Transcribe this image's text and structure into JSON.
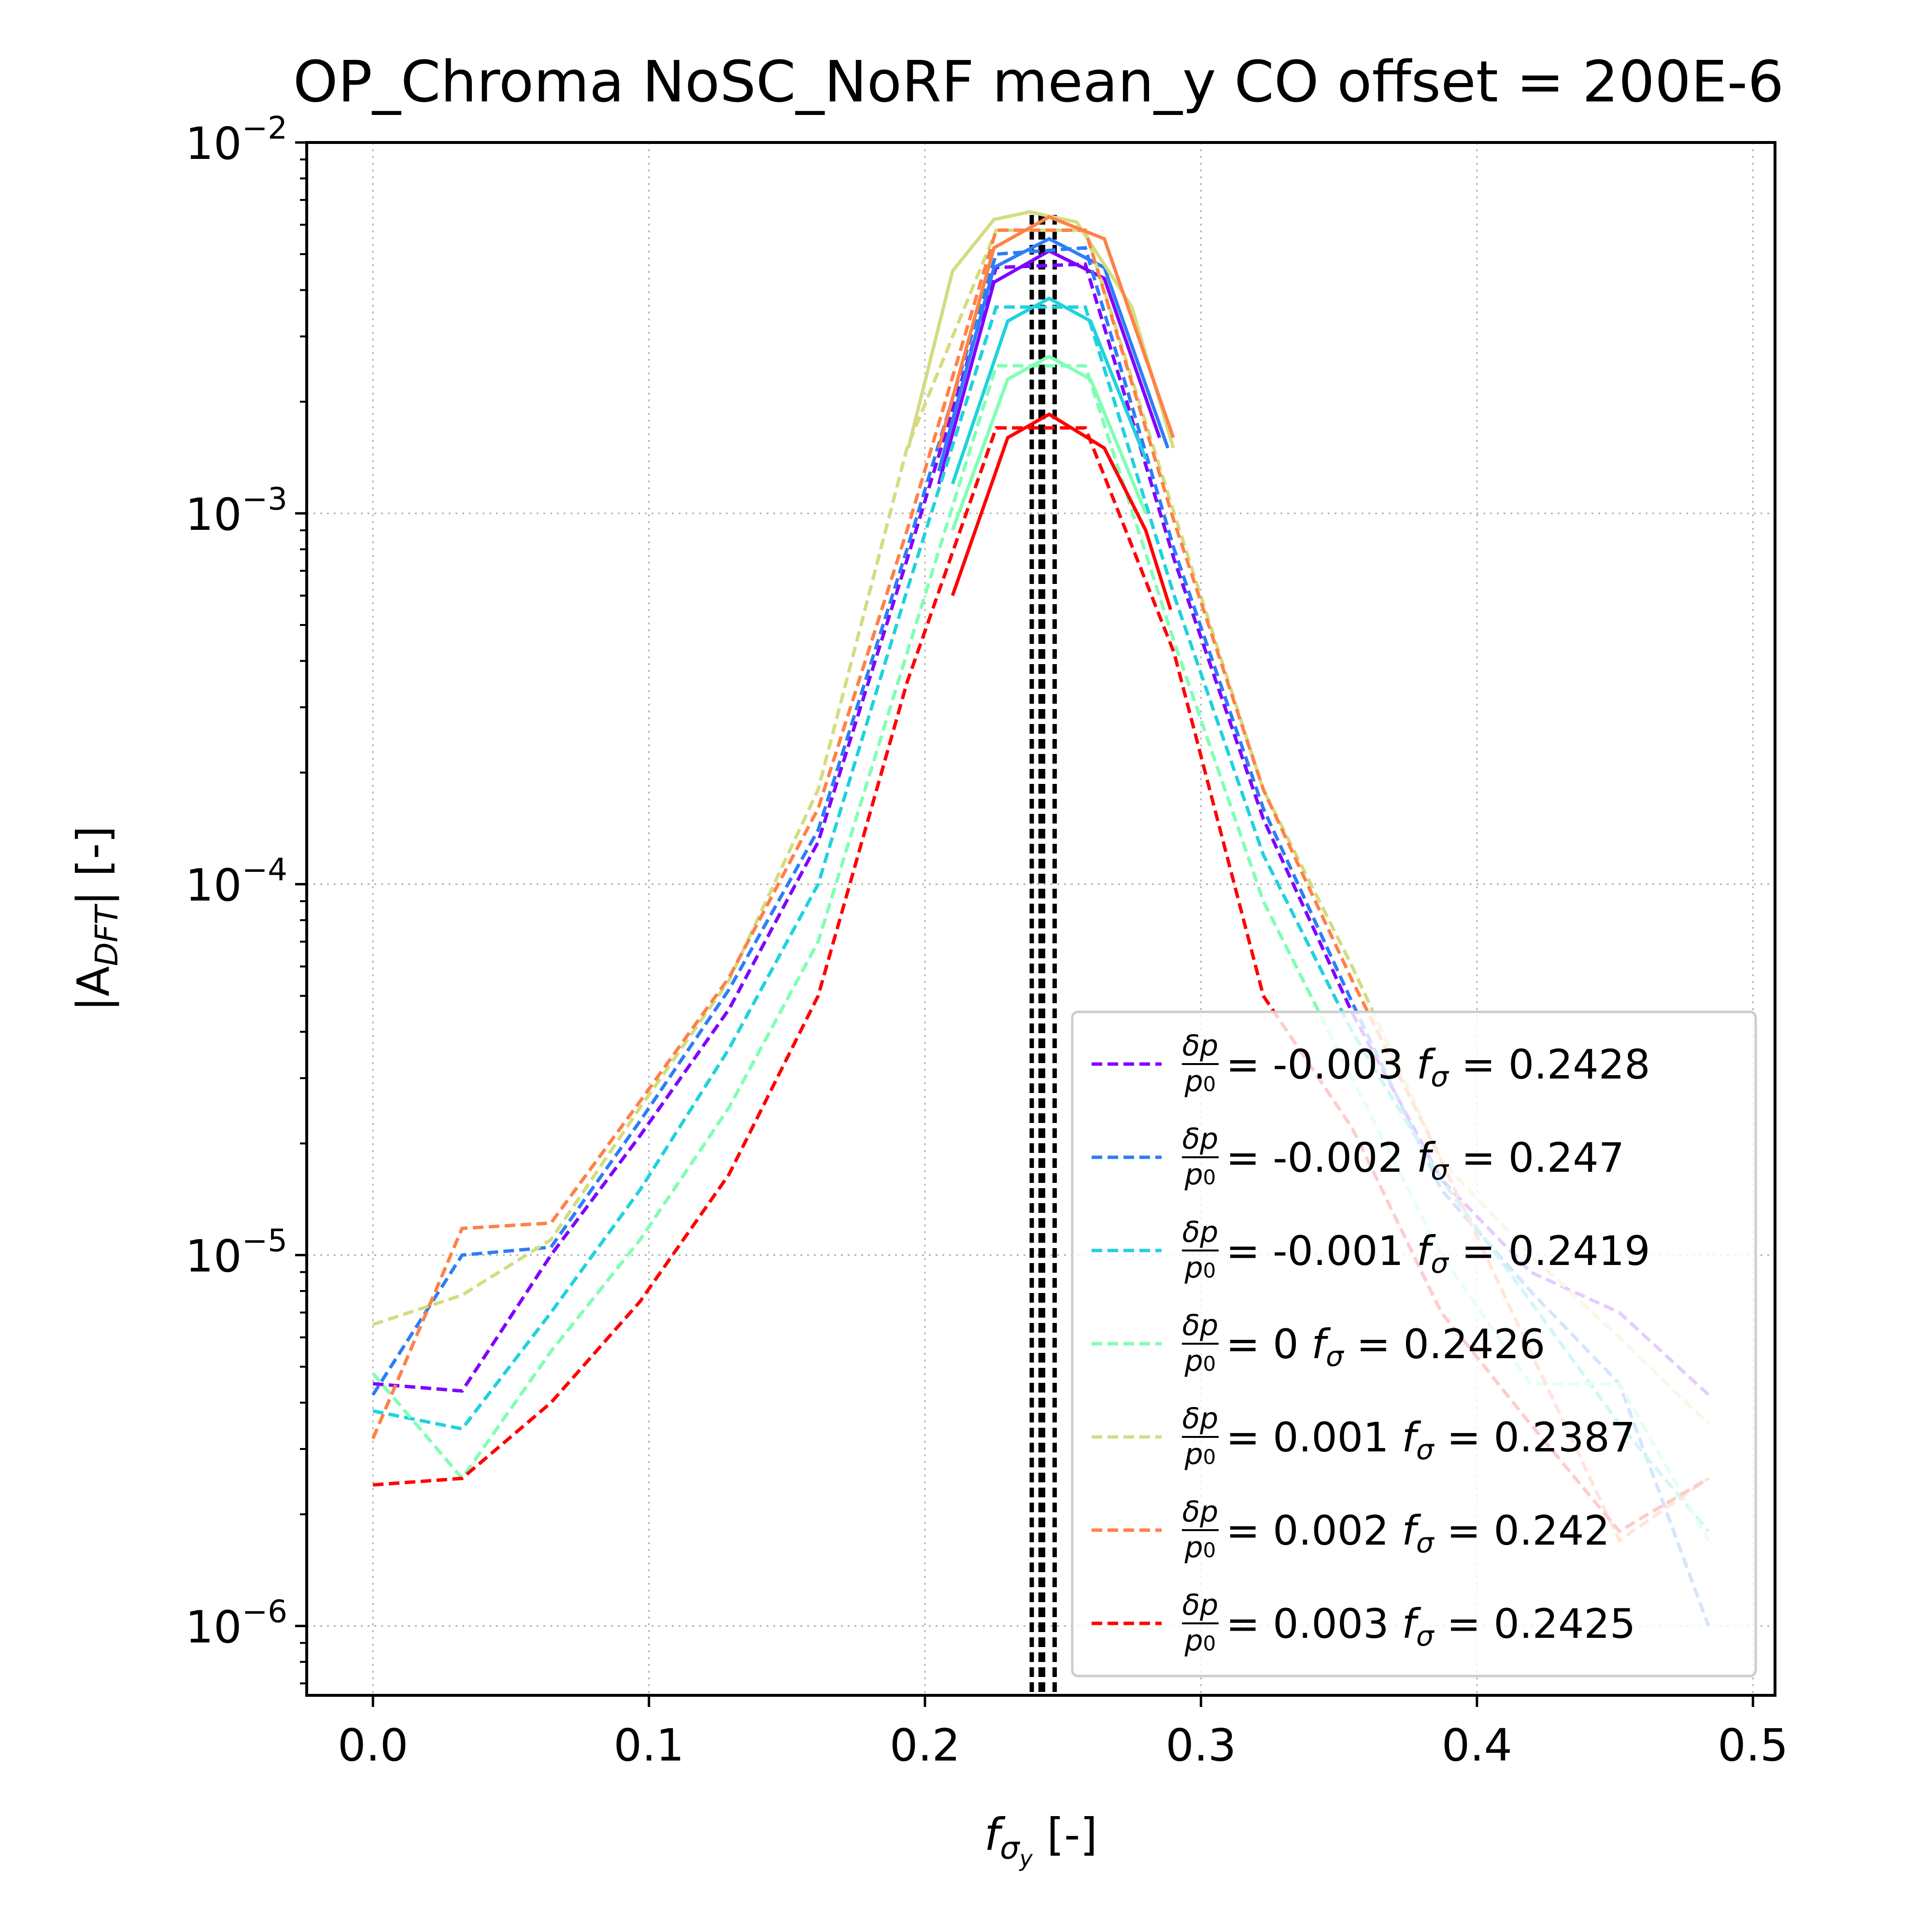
{
  "chart_data": {
    "type": "line",
    "title": "OP_Chroma NoSC_NoRF mean_y  CO offset = 200E-6",
    "xlabel": {
      "base": "f",
      "sub": "σ",
      "subsub": "y",
      "suffix": " [-]"
    },
    "ylabel": {
      "pre": "|A",
      "sub": "DFT",
      "post": "| [-]"
    },
    "xlim": [
      -0.024,
      0.508
    ],
    "ylim": [
      6.5e-07,
      0.01
    ],
    "yscale": "log",
    "grid": true,
    "legend_position": "lower right",
    "x_ticks": [
      "0.0",
      "0.1",
      "0.2",
      "0.3",
      "0.4",
      "0.5"
    ],
    "y_ticks": [
      {
        "value": 1e-06,
        "base": "10",
        "exp": "−6"
      },
      {
        "value": 1e-05,
        "base": "10",
        "exp": "−5"
      },
      {
        "value": 0.0001,
        "base": "10",
        "exp": "−4"
      },
      {
        "value": 0.001,
        "base": "10",
        "exp": "−3"
      },
      {
        "value": 0.01,
        "base": "10",
        "exp": "−2"
      }
    ],
    "series": [
      {
        "name": "-0.003",
        "legend_dp": "-0.003",
        "legend_f": "0.2428",
        "color": "#8000ff",
        "x": [
          0.0,
          0.0323,
          0.0645,
          0.0968,
          0.129,
          0.1613,
          0.1935,
          0.2258,
          0.2581,
          0.2903,
          0.3226,
          0.3548,
          0.3871,
          0.4194,
          0.4516,
          0.4839
        ],
        "y": [
          4.5e-06,
          4.3e-06,
          1e-05,
          2.1e-05,
          4.6e-05,
          0.00013,
          0.00075,
          0.0046,
          0.0047,
          0.00075,
          0.00015,
          4.5e-05,
          1.6e-05,
          9e-06,
          7e-06,
          4.2e-06
        ],
        "fit_x": [
          0.205,
          0.225,
          0.245,
          0.265,
          0.285
        ],
        "fit_y": [
          0.0012,
          0.0042,
          0.0051,
          0.0043,
          0.0016
        ]
      },
      {
        "name": "-0.002",
        "legend_dp": "-0.002",
        "legend_f": "0.247",
        "color": "#2c7ef7",
        "x": [
          0.0,
          0.0323,
          0.0645,
          0.0968,
          0.129,
          0.1613,
          0.1935,
          0.2258,
          0.2581,
          0.2903,
          0.3226,
          0.3548,
          0.3871,
          0.4194,
          0.4516,
          0.4839
        ],
        "y": [
          4.2e-06,
          1e-05,
          1.05e-05,
          2.3e-05,
          5.2e-05,
          0.00014,
          0.0008,
          0.005,
          0.0052,
          0.0008,
          0.00016,
          4.8e-05,
          1.5e-05,
          8e-06,
          4.5e-06,
          1e-06
        ],
        "fit_x": [
          0.205,
          0.225,
          0.245,
          0.265,
          0.288
        ],
        "fit_y": [
          0.0013,
          0.0046,
          0.0055,
          0.0046,
          0.0015
        ]
      },
      {
        "name": "-0.001",
        "legend_dp": "-0.001",
        "legend_f": "0.2419",
        "color": "#1fd2dd",
        "x": [
          0.0,
          0.0323,
          0.0645,
          0.0968,
          0.129,
          0.1613,
          0.1935,
          0.2258,
          0.2581,
          0.2903,
          0.3226,
          0.3548,
          0.3871,
          0.4194,
          0.4516,
          0.4839
        ],
        "y": [
          3.8e-06,
          3.4e-06,
          7e-06,
          1.5e-05,
          3.6e-05,
          0.0001,
          0.00062,
          0.0036,
          0.0036,
          0.0006,
          0.00012,
          4e-05,
          1.6e-05,
          7.5e-06,
          3.5e-06,
          1.8e-06
        ],
        "fit_x": [
          0.21,
          0.23,
          0.245,
          0.26,
          0.28
        ],
        "fit_y": [
          0.0012,
          0.0033,
          0.0038,
          0.0033,
          0.0014
        ]
      },
      {
        "name": "0",
        "legend_dp": "0",
        "legend_f": "0.2426",
        "color": "#80ffb4",
        "x": [
          0.0,
          0.0323,
          0.0645,
          0.0968,
          0.129,
          0.1613,
          0.1935,
          0.2258,
          0.2581,
          0.2903,
          0.3226,
          0.3548,
          0.3871,
          0.4194,
          0.4516,
          0.4839
        ],
        "y": [
          4.8e-06,
          2.5e-06,
          5.5e-06,
          1.1e-05,
          2.5e-05,
          7e-05,
          0.00042,
          0.0025,
          0.0025,
          0.00045,
          9e-05,
          3e-05,
          1e-05,
          4.5e-06,
          4.5e-06,
          1.7e-06
        ],
        "fit_x": [
          0.21,
          0.23,
          0.245,
          0.26,
          0.28
        ],
        "fit_y": [
          0.0009,
          0.0023,
          0.00265,
          0.0023,
          0.001
        ]
      },
      {
        "name": "0.001",
        "legend_dp": "0.001",
        "legend_f": "0.2387",
        "color": "#d4dc7f",
        "x": [
          0.0,
          0.0323,
          0.0645,
          0.0968,
          0.129,
          0.1613,
          0.1935,
          0.2258,
          0.2581,
          0.2903,
          0.3226,
          0.3548,
          0.3871,
          0.4194,
          0.4516,
          0.4839
        ],
        "y": [
          6.5e-06,
          7.8e-06,
          1.1e-05,
          2.5e-05,
          5.5e-05,
          0.00018,
          0.0015,
          0.0058,
          0.0058,
          0.001,
          0.00018,
          6e-05,
          1.8e-05,
          1e-05,
          6e-06,
          3.5e-06
        ],
        "fit_x": [
          0.194,
          0.21,
          0.225,
          0.238,
          0.255,
          0.275,
          0.29
        ],
        "fit_y": [
          0.0015,
          0.0045,
          0.0062,
          0.0065,
          0.0061,
          0.0036,
          0.0015
        ]
      },
      {
        "name": "0.002",
        "legend_dp": "0.002",
        "legend_f": "0.242",
        "color": "#ff8147",
        "x": [
          0.0,
          0.0323,
          0.0645,
          0.0968,
          0.129,
          0.1613,
          0.1935,
          0.2258,
          0.2581,
          0.2903,
          0.3226,
          0.3548,
          0.3871,
          0.4194,
          0.4516,
          0.4839
        ],
        "y": [
          3.2e-06,
          1.18e-05,
          1.22e-05,
          2.6e-05,
          5.6e-05,
          0.00016,
          0.0009,
          0.0058,
          0.0058,
          0.00095,
          0.00018,
          5.5e-05,
          1.8e-05,
          5.5e-06,
          1.7e-06,
          2.5e-06
        ],
        "fit_x": [
          0.205,
          0.225,
          0.245,
          0.265,
          0.29
        ],
        "fit_y": [
          0.0015,
          0.0052,
          0.0063,
          0.0055,
          0.0016
        ]
      },
      {
        "name": "0.003",
        "legend_dp": "0.003",
        "legend_f": "0.2425",
        "color": "#ff0000",
        "x": [
          0.0,
          0.0323,
          0.0645,
          0.0968,
          0.129,
          0.1613,
          0.1935,
          0.2258,
          0.2581,
          0.2903,
          0.3226,
          0.3548,
          0.3871,
          0.4194,
          0.4516,
          0.4839
        ],
        "y": [
          2.4e-06,
          2.5e-06,
          4e-06,
          7.5e-06,
          1.65e-05,
          5e-05,
          0.00035,
          0.0017,
          0.0017,
          0.00042,
          5e-05,
          2.2e-05,
          7e-06,
          3.5e-06,
          1.8e-06,
          2.5e-06
        ],
        "fit_x": [
          0.21,
          0.23,
          0.245,
          0.265,
          0.28,
          0.289
        ],
        "fit_y": [
          0.0006,
          0.0016,
          0.00185,
          0.0015,
          0.0009,
          0.00055
        ]
      }
    ],
    "vlines": [
      0.2387,
      0.2419,
      0.242,
      0.2425,
      0.2426,
      0.2428,
      0.247
    ],
    "vline_color": "#000000"
  }
}
